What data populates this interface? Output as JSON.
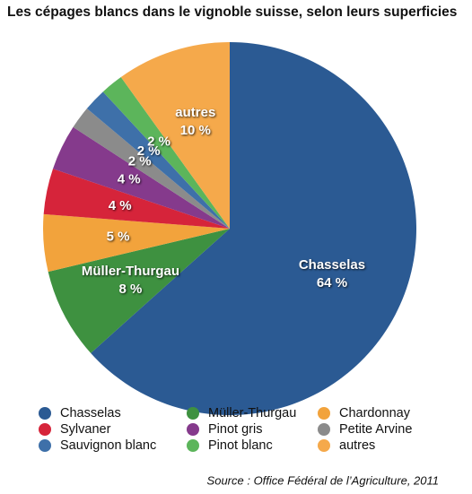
{
  "chart_data": {
    "type": "pie",
    "title": "Les cépages blancs dans le vignoble suisse, selon leurs superficies",
    "categories": [
      "Chasselas",
      "Müller-Thurgau",
      "Chardonnay",
      "Sylvaner",
      "Pinot gris",
      "Petite Arvine",
      "Sauvignon blanc",
      "Pinot blanc",
      "autres"
    ],
    "values": [
      64,
      8,
      5,
      4,
      4,
      2,
      2,
      2,
      10
    ],
    "value_labels": [
      "64 %",
      "8 %",
      "5 %",
      "4 %",
      "4 %",
      "2 %",
      "2 %",
      "2 %",
      "10 %"
    ],
    "colors": [
      "#2b5a93",
      "#3e9140",
      "#f2a33c",
      "#d6243a",
      "#853a8c",
      "#8b8b8b",
      "#3e70a9",
      "#5cb55b",
      "#f5a94b"
    ],
    "source": "Source : Office Fédéral de l’Agriculture, 2011"
  }
}
